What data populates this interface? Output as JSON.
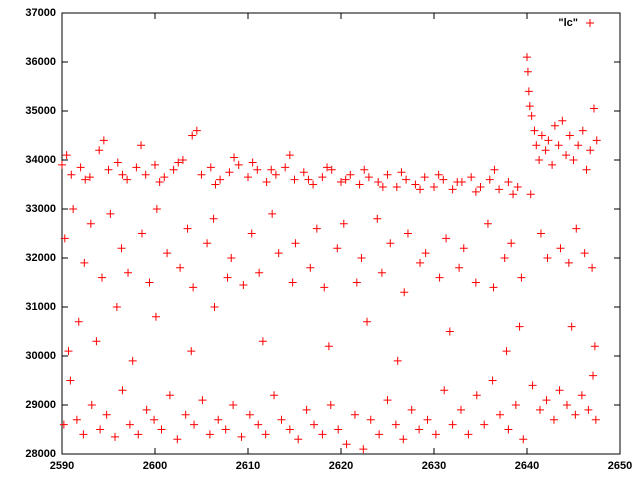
{
  "chart_data": {
    "type": "scatter",
    "series": [
      {
        "name": "\"lc\"",
        "color": "#ff0000",
        "x": [
          2590,
          2591,
          2592,
          2593,
          2594,
          2595,
          2596,
          2597,
          2598,
          2599,
          2600,
          2601,
          2602,
          2603,
          2604,
          2605,
          2606,
          2607,
          2608,
          2609,
          2610,
          2611,
          2612,
          2613,
          2614,
          2615,
          2616,
          2617,
          2618,
          2619,
          2620,
          2621,
          2622,
          2623,
          2624,
          2625,
          2626,
          2627,
          2628,
          2629,
          2630,
          2631,
          2632,
          2633,
          2634,
          2635,
          2636,
          2637,
          2638,
          2639,
          2590.5,
          2592.5,
          2594.5,
          2596.5,
          2598.5,
          2600.5,
          2602.5,
          2604.5,
          2606.5,
          2608.5,
          2610.5,
          2612.5,
          2614.5,
          2616.5,
          2618.5,
          2620.5,
          2622.5,
          2624.5,
          2626.5,
          2628.5,
          2630.5,
          2632.5,
          2634.5,
          2636.5,
          2638.5,
          2640,
          2640.1,
          2640.2,
          2640.3,
          2640.5,
          2640.8,
          2641,
          2641.3,
          2641.6,
          2642,
          2642.3,
          2642.7,
          2643,
          2643.4,
          2643.8,
          2644.2,
          2644.6,
          2645,
          2645.5,
          2646,
          2646.4,
          2646.8,
          2647.2,
          2647.5,
          2590.3,
          2591.2,
          2592.4,
          2593.1,
          2594.3,
          2595.2,
          2596.4,
          2597.1,
          2598.6,
          2599.4,
          2600.2,
          2601.3,
          2602.7,
          2603.5,
          2604.1,
          2605.6,
          2606.3,
          2607.8,
          2608.2,
          2609.5,
          2610.4,
          2611.2,
          2612.6,
          2613.3,
          2614.8,
          2615.1,
          2616.7,
          2617.4,
          2618.2,
          2619.6,
          2620.3,
          2621.7,
          2622.2,
          2623.9,
          2624.4,
          2625.3,
          2626.8,
          2627.2,
          2628.5,
          2629.1,
          2630.6,
          2631.3,
          2632.7,
          2633.2,
          2634.5,
          2635.8,
          2636.4,
          2637.6,
          2638.3,
          2639.4,
          2640.4,
          2641.5,
          2642.2,
          2643.6,
          2644.5,
          2645.3,
          2646.2,
          2647,
          2590.2,
          2590.9,
          2591.6,
          2592.3,
          2593.2,
          2594.1,
          2594.8,
          2595.7,
          2596.5,
          2597.3,
          2598.2,
          2599.1,
          2599.9,
          2600.7,
          2601.6,
          2602.4,
          2603.3,
          2604.2,
          2605.1,
          2605.9,
          2606.8,
          2607.6,
          2608.4,
          2609.3,
          2610.2,
          2611.1,
          2611.9,
          2612.8,
          2613.6,
          2614.5,
          2615.4,
          2616.3,
          2617.1,
          2618,
          2618.9,
          2619.7,
          2620.6,
          2621.5,
          2622.4,
          2623.2,
          2624.1,
          2625,
          2625.9,
          2626.7,
          2627.6,
          2628.4,
          2629.3,
          2630.2,
          2631.1,
          2632,
          2632.9,
          2633.7,
          2634.6,
          2635.4,
          2636.3,
          2637.1,
          2638,
          2638.8,
          2639.6,
          2640.6,
          2641.4,
          2642.1,
          2642.9,
          2643.5,
          2644.3,
          2645.2,
          2645.9,
          2646.6,
          2647.1,
          2647.4,
          2590.7,
          2591.8,
          2593.7,
          2595.9,
          2597.6,
          2600.1,
          2603.9,
          2606.4,
          2611.6,
          2618.7,
          2622.8,
          2626.1,
          2631.7,
          2637.8,
          2639.2,
          2644.8,
          2647.3
        ],
        "values": [
          33900,
          33700,
          33850,
          33650,
          34200,
          33800,
          33950,
          33600,
          33850,
          33700,
          33900,
          33650,
          33800,
          34000,
          34500,
          33700,
          33850,
          33600,
          33750,
          33900,
          33650,
          33800,
          33550,
          33700,
          33850,
          33600,
          33750,
          33500,
          33650,
          33800,
          33550,
          33700,
          33500,
          33650,
          33550,
          33700,
          33450,
          33600,
          33500,
          33650,
          33450,
          33600,
          33400,
          33550,
          33650,
          33450,
          33600,
          33400,
          33550,
          33450,
          34100,
          33600,
          34400,
          33700,
          34300,
          33550,
          33950,
          34600,
          33500,
          34050,
          33950,
          33800,
          34100,
          33600,
          33850,
          33600,
          33800,
          33450,
          33750,
          33400,
          33700,
          33550,
          33350,
          33800,
          33300,
          36100,
          35800,
          35400,
          35100,
          34900,
          34600,
          34300,
          34000,
          34500,
          34200,
          34400,
          33900,
          34700,
          34300,
          34800,
          34100,
          34500,
          34000,
          34300,
          34600,
          33800,
          34200,
          35050,
          34400,
          32400,
          33000,
          31900,
          32700,
          31600,
          32900,
          32200,
          31700,
          32500,
          31500,
          33000,
          32100,
          31800,
          32600,
          31400,
          32300,
          32800,
          31600,
          32000,
          31450,
          32500,
          31700,
          32900,
          32100,
          31500,
          32300,
          31800,
          32600,
          31400,
          32200,
          32700,
          31500,
          32000,
          32800,
          31700,
          32300,
          31300,
          32500,
          31900,
          32100,
          31600,
          32400,
          31800,
          32200,
          31500,
          32700,
          31400,
          32000,
          32300,
          31600,
          33300,
          32500,
          32000,
          32200,
          31900,
          32600,
          32100,
          31800,
          28600,
          29500,
          28700,
          28400,
          29000,
          28500,
          28800,
          28350,
          29300,
          28600,
          28400,
          28900,
          28700,
          28500,
          29200,
          28300,
          28800,
          28600,
          29100,
          28400,
          28700,
          28500,
          29000,
          28350,
          28800,
          28600,
          28400,
          29200,
          28700,
          28500,
          28300,
          28900,
          28600,
          28400,
          29000,
          28500,
          28200,
          28800,
          28100,
          28700,
          28400,
          29100,
          28600,
          28300,
          28900,
          28500,
          28700,
          28400,
          29300,
          28600,
          28900,
          28400,
          29200,
          28600,
          29500,
          28800,
          28500,
          29000,
          28300,
          29400,
          28900,
          29100,
          28700,
          29300,
          29000,
          28800,
          29200,
          28900,
          29600,
          28700,
          30100,
          30700,
          30300,
          31000,
          29900,
          30800,
          30100,
          31000,
          30300,
          30200,
          30700,
          29900,
          30500,
          30100,
          30600,
          30600,
          30200
        ]
      }
    ],
    "xlim": [
      2590,
      2650
    ],
    "ylim": [
      28000,
      37000
    ],
    "xticks": [
      2590,
      2600,
      2610,
      2620,
      2630,
      2640,
      2650
    ],
    "yticks": [
      28000,
      29000,
      30000,
      31000,
      32000,
      33000,
      34000,
      35000,
      36000,
      37000
    ],
    "legend": "top-right",
    "grid": false
  }
}
